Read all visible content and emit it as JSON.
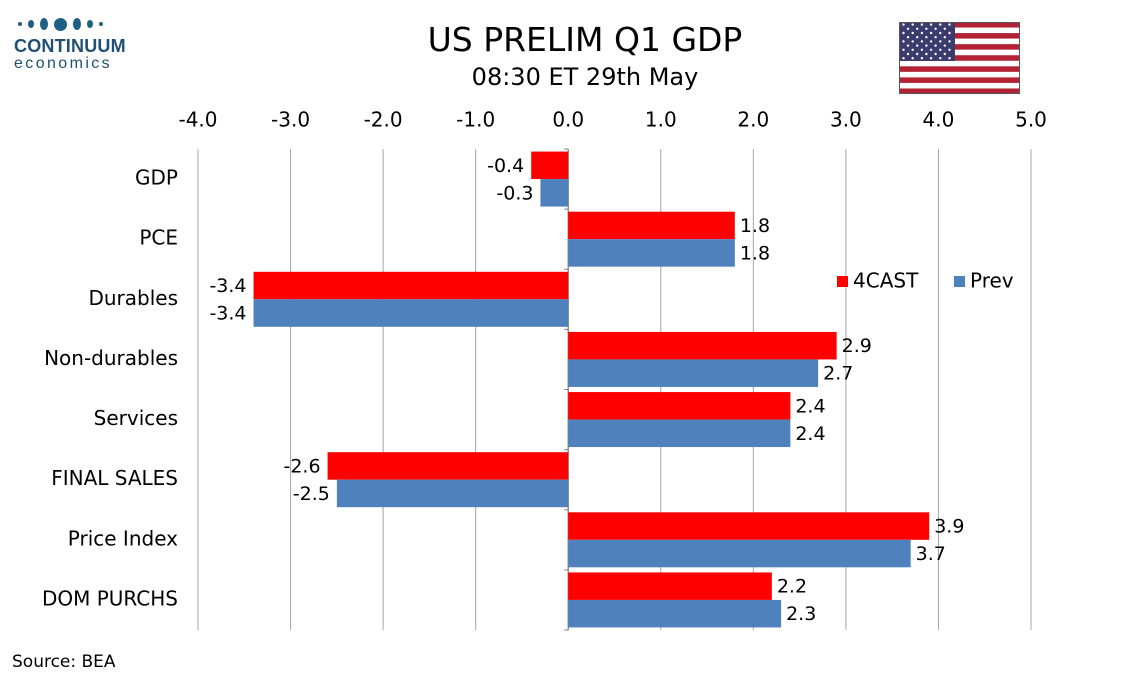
{
  "header": {
    "logo_name": "CONTINUUM",
    "logo_sub": "economics",
    "title": "US PRELIM Q1 GDP",
    "subtitle": "08:30 ET 29th May"
  },
  "footer": {
    "source": "Source: BEA"
  },
  "colors": {
    "forecast": "#ff0000",
    "previous": "#4f81bd",
    "grid": "#a6a6a6",
    "logo": "#1f5f86"
  },
  "icons": {
    "flag": "us-flag-icon",
    "logo": "continuum-logo-icon"
  },
  "chart_data": {
    "type": "bar",
    "orientation": "horizontal",
    "categories": [
      "GDP",
      "PCE",
      "Durables",
      "Non-durables",
      "Services",
      "FINAL SALES",
      "Price Index",
      "DOM PURCHS"
    ],
    "series": [
      {
        "name": "4CAST",
        "color": "#ff0000",
        "values": [
          -0.4,
          1.8,
          -3.4,
          2.9,
          2.4,
          -2.6,
          3.9,
          2.2
        ]
      },
      {
        "name": "Prev",
        "color": "#4f81bd",
        "values": [
          -0.3,
          1.8,
          -3.4,
          2.7,
          2.4,
          -2.5,
          3.7,
          2.3
        ]
      }
    ],
    "xlim": [
      -4.0,
      5.0
    ],
    "xticks": [
      "-4.0",
      "-3.0",
      "-2.0",
      "-1.0",
      "0.0",
      "1.0",
      "2.0",
      "3.0",
      "4.0",
      "5.0"
    ],
    "x_axis_position": "top",
    "grid": true,
    "data_labels": true,
    "legend_position": "top-right"
  }
}
